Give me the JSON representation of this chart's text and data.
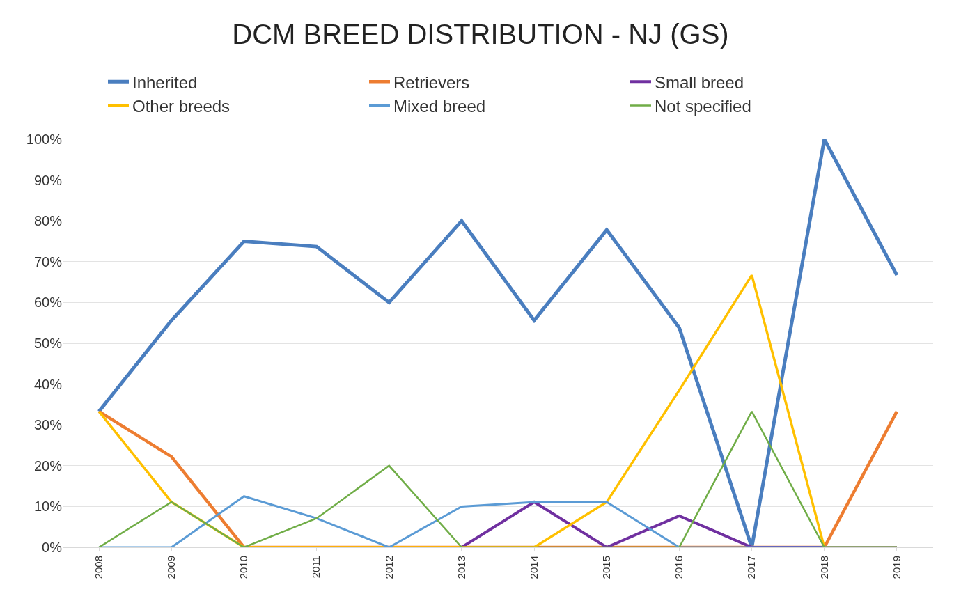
{
  "chart_data": {
    "type": "line",
    "title": "DCM BREED DISTRIBUTION - NJ (GS)",
    "categories": [
      "2008",
      "2009",
      "2010",
      "2011",
      "2012",
      "2013",
      "2014",
      "2015",
      "2016",
      "2017",
      "2018",
      "2019"
    ],
    "series": [
      {
        "name": "Inherited",
        "color": "#4a7ebf",
        "values": [
          33.3,
          55.6,
          75,
          73.7,
          60,
          80,
          55.6,
          77.8,
          53.8,
          0,
          100,
          66.7
        ]
      },
      {
        "name": "Retrievers",
        "color": "#ed7d31",
        "values": [
          33.3,
          22.2,
          0,
          0,
          0,
          0,
          0,
          0,
          0,
          0,
          0,
          33.3
        ]
      },
      {
        "name": "Small breed",
        "color": "#7030a0",
        "values": [
          null,
          null,
          null,
          null,
          null,
          0,
          11.1,
          0,
          7.7,
          0,
          0,
          0
        ]
      },
      {
        "name": "Other breeds",
        "color": "#ffc000",
        "values": [
          33.3,
          11.1,
          0,
          0,
          0,
          0,
          0,
          11.1,
          38.5,
          66.7,
          0,
          0
        ]
      },
      {
        "name": "Mixed breed",
        "color": "#5b9bd5",
        "values": [
          0,
          0,
          12.5,
          7.1,
          0,
          10,
          11.1,
          11.1,
          0,
          0,
          0,
          0
        ]
      },
      {
        "name": "Not specified",
        "color": "#70ad47",
        "values": [
          0,
          11.1,
          0,
          7.1,
          20,
          0,
          0,
          0,
          0,
          33.3,
          0,
          0
        ]
      }
    ],
    "ylim": [
      0,
      100
    ],
    "yticks": [
      {
        "value": 0,
        "label": "0%"
      },
      {
        "value": 10,
        "label": "10%"
      },
      {
        "value": 20,
        "label": "20%"
      },
      {
        "value": 30,
        "label": "30%"
      },
      {
        "value": 40,
        "label": "40%"
      },
      {
        "value": 50,
        "label": "50%"
      },
      {
        "value": 60,
        "label": "60%"
      },
      {
        "value": 70,
        "label": "70%"
      },
      {
        "value": 80,
        "label": "80%"
      },
      {
        "value": 90,
        "label": "90%"
      },
      {
        "value": 100,
        "label": "100%"
      }
    ],
    "grid": "y",
    "legend": "top",
    "marker": "none",
    "line_style": "solid"
  }
}
